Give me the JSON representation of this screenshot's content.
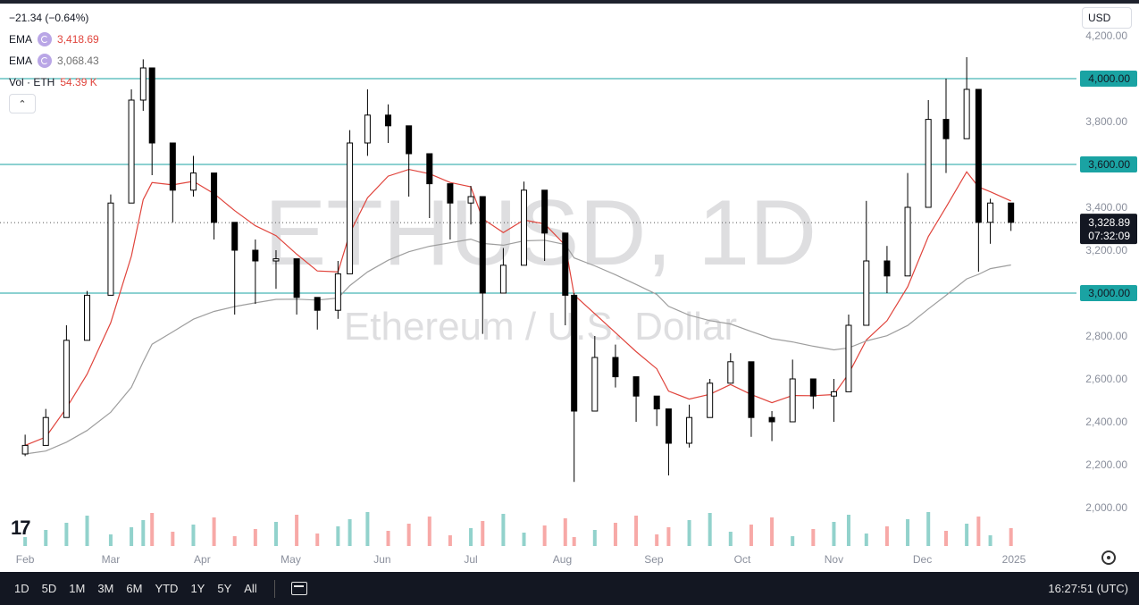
{
  "legend": {
    "change": "−21.34 (−0.64%)",
    "ema1_label": "EMA",
    "ema1_value": "3,418.69",
    "ema2_label": "EMA",
    "ema2_value": "3,068.43",
    "vol_label": "Vol · ETH",
    "vol_value": "54.39 K"
  },
  "currency": "USD",
  "watermark": {
    "symbol": "ETHUSD, 1D",
    "description": "Ethereum / U.S. Dollar"
  },
  "price_axis": {
    "ticks": [
      "4,200.00",
      "4,000.00",
      "3,800.00",
      "3,600.00",
      "3,400.00",
      "3,200.00",
      "3,000.00",
      "2,800.00",
      "2,600.00",
      "2,400.00",
      "2,200.00",
      "2,000.00"
    ],
    "tick_values": [
      4200,
      4000,
      3800,
      3600,
      3400,
      3200,
      3000,
      2800,
      2600,
      2400,
      2200,
      2000
    ],
    "current_price": "3,328.89",
    "countdown": "07:32:09",
    "level_labels": [
      "4,000.00",
      "3,600.00",
      "3,000.00"
    ]
  },
  "time_axis": {
    "labels": [
      "Feb",
      "Mar",
      "Apr",
      "May",
      "Jun",
      "Jul",
      "Aug",
      "Sep",
      "Oct",
      "Nov",
      "Dec",
      "2025"
    ]
  },
  "bottom_bar": {
    "ranges": [
      "1D",
      "5D",
      "1M",
      "3M",
      "6M",
      "YTD",
      "1Y",
      "5Y",
      "All"
    ],
    "clock": "16:27:51 (UTC)"
  },
  "colors": {
    "up": "#26a69a",
    "down": "#ef5350",
    "ema_fast": "#e0443c",
    "ema_slow": "#9e9e9e",
    "level_line": "#1aa3a3",
    "candle": "#000000"
  },
  "chart_data": {
    "type": "candlestick",
    "symbol": "ETHUSD",
    "interval": "1D",
    "ylim": [
      1850,
      4250
    ],
    "horizontal_levels": [
      4000,
      3600,
      3000
    ],
    "last_price": 3328.89,
    "ema_fast_last": 3418.69,
    "ema_slow_last": 3068.43,
    "volume_last": "54.39 K",
    "x": [
      "2024-02-01",
      "2024-02-08",
      "2024-02-15",
      "2024-02-22",
      "2024-03-01",
      "2024-03-08",
      "2024-03-12",
      "2024-03-15",
      "2024-03-22",
      "2024-03-29",
      "2024-04-05",
      "2024-04-12",
      "2024-04-19",
      "2024-04-26",
      "2024-05-03",
      "2024-05-10",
      "2024-05-17",
      "2024-05-21",
      "2024-05-27",
      "2024-06-03",
      "2024-06-10",
      "2024-06-17",
      "2024-06-24",
      "2024-07-01",
      "2024-07-05",
      "2024-07-12",
      "2024-07-19",
      "2024-07-26",
      "2024-08-02",
      "2024-08-05",
      "2024-08-12",
      "2024-08-19",
      "2024-08-26",
      "2024-09-02",
      "2024-09-06",
      "2024-09-13",
      "2024-09-20",
      "2024-09-27",
      "2024-10-04",
      "2024-10-11",
      "2024-10-18",
      "2024-10-25",
      "2024-11-01",
      "2024-11-06",
      "2024-11-12",
      "2024-11-19",
      "2024-11-26",
      "2024-12-03",
      "2024-12-09",
      "2024-12-16",
      "2024-12-20",
      "2024-12-24",
      "2024-12-31"
    ],
    "close": [
      2290,
      2420,
      2780,
      2990,
      3420,
      3900,
      4050,
      3700,
      3480,
      3560,
      3330,
      3200,
      3150,
      3160,
      2980,
      2920,
      3090,
      3700,
      3830,
      3780,
      3650,
      3510,
      3420,
      3450,
      3000,
      3130,
      3480,
      3280,
      2990,
      2450,
      2700,
      2610,
      2520,
      2460,
      2300,
      2420,
      2580,
      2680,
      2420,
      2400,
      2600,
      2520,
      2540,
      2850,
      3150,
      3080,
      3400,
      3810,
      3720,
      3950,
      3330,
      3420,
      3330
    ],
    "high": [
      2340,
      2460,
      2850,
      3010,
      3460,
      3950,
      4090,
      3850,
      3520,
      3640,
      3480,
      3300,
      3250,
      3200,
      3100,
      2980,
      3150,
      3760,
      3950,
      3880,
      3720,
      3610,
      3480,
      3500,
      3400,
      3210,
      3520,
      3300,
      3220,
      3000,
      2800,
      2760,
      2600,
      2520,
      2450,
      2480,
      2600,
      2720,
      2560,
      2450,
      2690,
      2560,
      2600,
      2900,
      3430,
      3220,
      3560,
      3900,
      4000,
      4100,
      3520,
      3440,
      3420
    ],
    "low": [
      2240,
      2370,
      2720,
      2910,
      3260,
      3780,
      3850,
      3550,
      3330,
      3450,
      3250,
      2900,
      2950,
      3020,
      2900,
      2830,
      2880,
      3280,
      3640,
      3700,
      3450,
      3350,
      3250,
      3320,
      2810,
      3000,
      3320,
      3150,
      2850,
      2120,
      2560,
      2560,
      2400,
      2380,
      2150,
      2280,
      2520,
      2580,
      2330,
      2310,
      2550,
      2460,
      2400,
      2680,
      3050,
      3000,
      3380,
      3720,
      3560,
      3900,
      3100,
      3230,
      3290
    ]
  }
}
